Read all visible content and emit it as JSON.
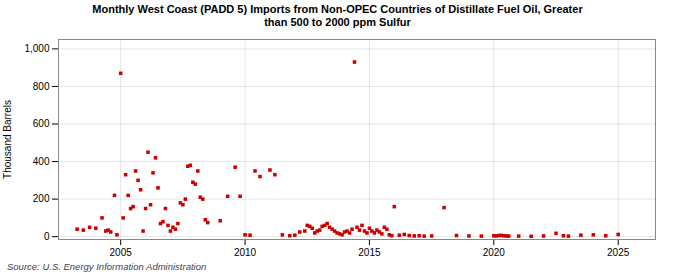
{
  "chart_data": {
    "type": "scatter",
    "title": "Monthly West Coast (PADD 5) Imports from Non-OPEC Countries of Distillate Fuel Oil, Greater\nthan 500 to 2000 ppm Sulfur",
    "ylabel": "Thousand Barrels",
    "source": "Source: U.S. Energy Information Administration",
    "color": "#cc0000",
    "marker": "square",
    "grid": true,
    "xlim": [
      2002.5,
      2026.5
    ],
    "ylim": [
      -15,
      1050
    ],
    "xticks": [
      2005,
      2010,
      2015,
      2020,
      2025
    ],
    "yticks": [
      0,
      200,
      400,
      600,
      800,
      {
        "value": 1000,
        "label": "1,000"
      }
    ],
    "x": [
      2003.25,
      2003.5,
      2003.75,
      2004.0,
      2004.25,
      2004.4,
      2004.5,
      2004.6,
      2004.75,
      2004.85,
      2005.0,
      2005.1,
      2005.2,
      2005.3,
      2005.4,
      2005.5,
      2005.6,
      2005.7,
      2005.8,
      2005.9,
      2006.0,
      2006.1,
      2006.2,
      2006.3,
      2006.4,
      2006.5,
      2006.6,
      2006.7,
      2006.8,
      2006.9,
      2007.0,
      2007.1,
      2007.2,
      2007.3,
      2007.4,
      2007.5,
      2007.6,
      2007.7,
      2007.8,
      2007.9,
      2008.0,
      2008.1,
      2008.2,
      2008.3,
      2008.4,
      2008.5,
      2009.0,
      2009.3,
      2009.6,
      2009.8,
      2010.0,
      2010.2,
      2010.4,
      2010.6,
      2011.0,
      2011.2,
      2011.5,
      2011.8,
      2012.0,
      2012.2,
      2012.4,
      2012.5,
      2012.6,
      2012.7,
      2012.8,
      2012.9,
      2013.0,
      2013.1,
      2013.2,
      2013.3,
      2013.4,
      2013.5,
      2013.6,
      2013.7,
      2013.8,
      2013.9,
      2014.0,
      2014.1,
      2014.2,
      2014.3,
      2014.4,
      2014.5,
      2014.6,
      2014.7,
      2014.8,
      2014.9,
      2015.0,
      2015.1,
      2015.2,
      2015.3,
      2015.4,
      2015.5,
      2015.6,
      2015.7,
      2015.8,
      2015.9,
      2016.0,
      2016.2,
      2016.4,
      2016.6,
      2016.8,
      2017.0,
      2017.2,
      2017.5,
      2018.0,
      2018.5,
      2019.0,
      2019.5,
      2020.0,
      2020.1,
      2020.2,
      2020.3,
      2020.4,
      2020.5,
      2020.6,
      2021.0,
      2021.5,
      2022.0,
      2022.5,
      2022.8,
      2023.0,
      2023.5,
      2024.0,
      2024.5,
      2025.0
    ],
    "values": [
      40,
      35,
      50,
      45,
      100,
      30,
      35,
      25,
      220,
      10,
      870,
      100,
      330,
      220,
      150,
      160,
      350,
      300,
      250,
      30,
      150,
      450,
      170,
      340,
      420,
      260,
      70,
      80,
      150,
      60,
      30,
      50,
      40,
      70,
      180,
      170,
      200,
      375,
      380,
      290,
      280,
      350,
      210,
      200,
      90,
      75,
      85,
      215,
      370,
      215,
      10,
      8,
      350,
      320,
      355,
      330,
      10,
      5,
      8,
      25,
      30,
      60,
      55,
      45,
      20,
      30,
      35,
      55,
      60,
      70,
      50,
      40,
      30,
      20,
      15,
      10,
      25,
      30,
      20,
      40,
      930,
      50,
      35,
      60,
      30,
      20,
      45,
      30,
      20,
      35,
      25,
      15,
      50,
      40,
      10,
      5,
      160,
      8,
      12,
      6,
      4,
      5,
      3,
      4,
      155,
      6,
      4,
      3,
      5,
      4,
      6,
      7,
      5,
      4,
      3,
      3,
      2,
      4,
      18,
      5,
      3,
      8,
      10,
      5,
      12
    ]
  }
}
